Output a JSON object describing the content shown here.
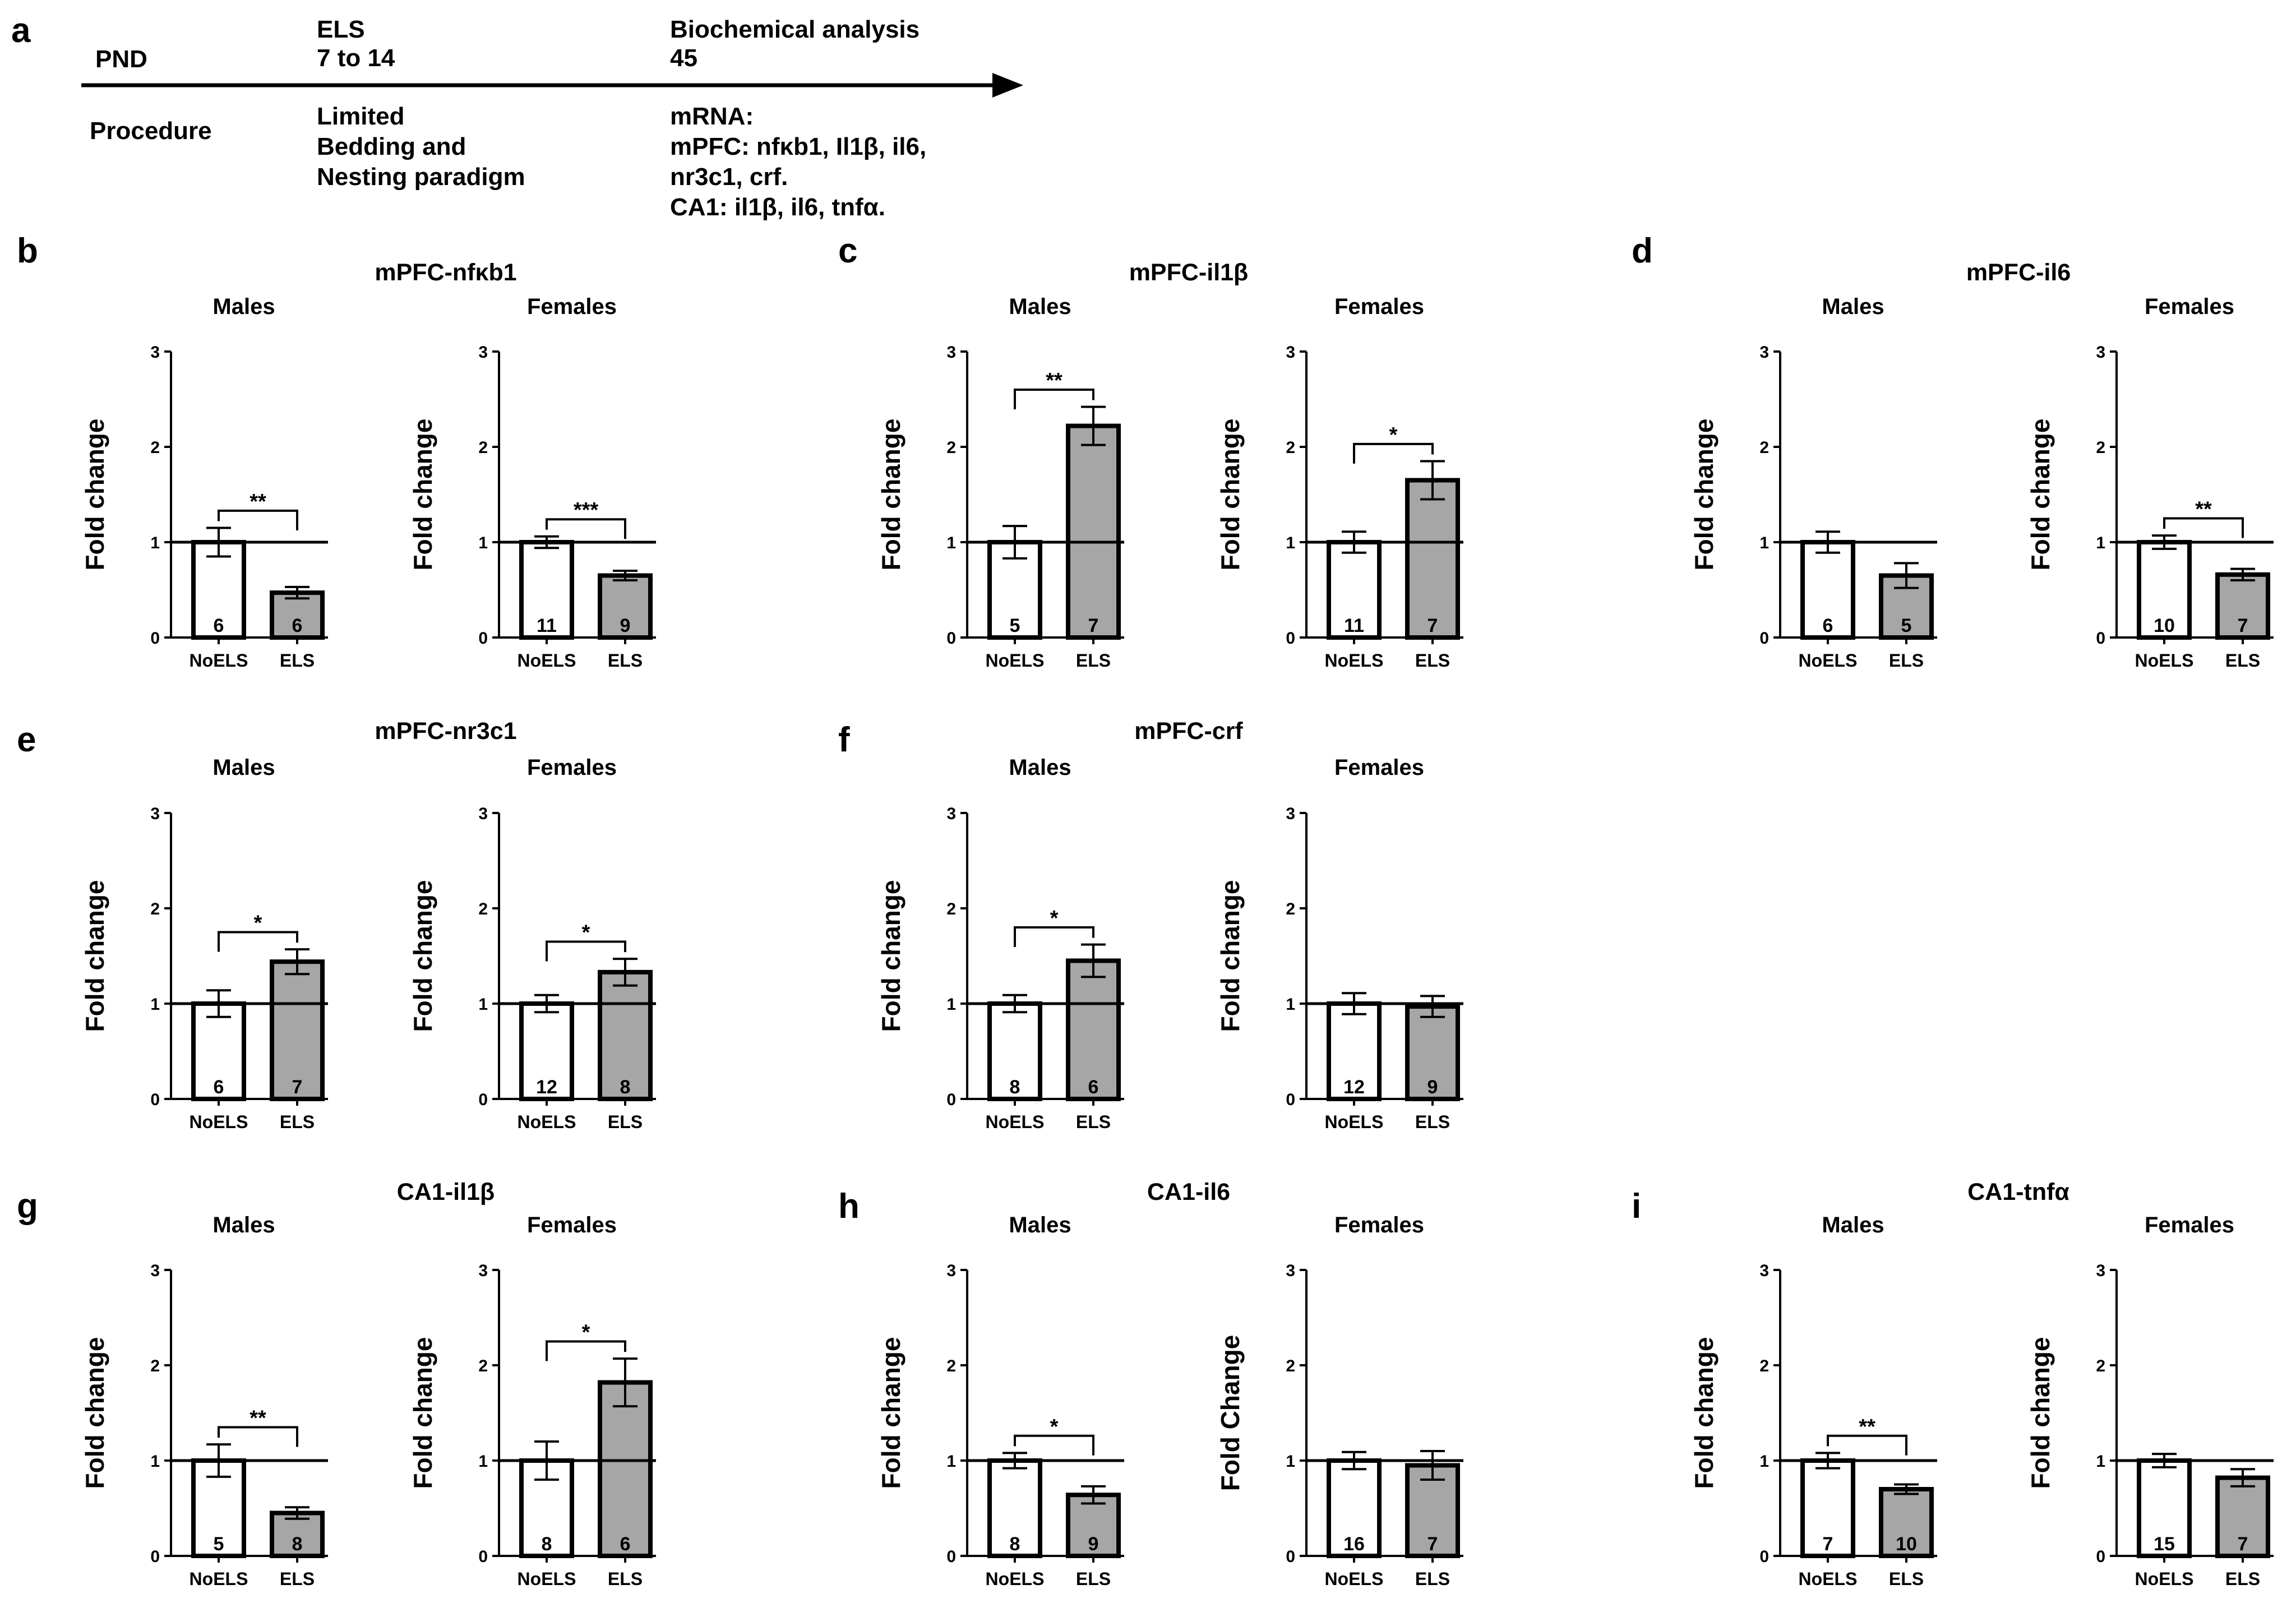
{
  "timeline": {
    "panel_label": "a",
    "row1_label": "PND",
    "row2_label": "Procedure",
    "stage1_lines": [
      "ELS",
      "7 to 14"
    ],
    "stage2_lines": [
      "Biochemical analysis",
      "45"
    ],
    "proc1_lines": [
      "Limited",
      "Bedding and",
      "Nesting paradigm"
    ],
    "proc2_lines": [
      "mRNA:",
      "mPFC: nfκb1, Il1β, il6,",
      "nr3c1, crf.",
      "CA1: il1β, il6, tnfα."
    ]
  },
  "colors": {
    "noels_fill": "#ffffff",
    "els_fill": "#a6a6a6",
    "stroke": "#000000"
  },
  "chart_data": [
    {
      "type": "bar",
      "panel": "b",
      "title": "mPFC-nfκb1",
      "sex": "Males",
      "ylabel": "Fold change",
      "categories": [
        "NoELS",
        "ELS"
      ],
      "values": [
        1.0,
        0.47
      ],
      "errors": [
        0.15,
        0.06
      ],
      "n": [
        "6",
        "6"
      ],
      "significance": "**",
      "reference_line": 1,
      "ylim": [
        0,
        3
      ],
      "yticks": [
        0,
        1,
        2,
        3
      ]
    },
    {
      "type": "bar",
      "panel": "b",
      "title": "",
      "sex": "Females",
      "ylabel": "Fold change",
      "categories": [
        "NoELS",
        "ELS"
      ],
      "values": [
        1.0,
        0.65
      ],
      "errors": [
        0.06,
        0.05
      ],
      "n": [
        "11",
        "9"
      ],
      "significance": "***",
      "reference_line": 1,
      "ylim": [
        0,
        3
      ],
      "yticks": [
        0,
        1,
        2,
        3
      ]
    },
    {
      "type": "bar",
      "panel": "c",
      "title": "mPFC-il1β",
      "sex": "Males",
      "ylabel": "Fold change",
      "categories": [
        "NoELS",
        "ELS"
      ],
      "values": [
        1.0,
        2.22
      ],
      "errors": [
        0.17,
        0.2
      ],
      "n": [
        "5",
        "7"
      ],
      "significance": "**",
      "reference_line": 1,
      "ylim": [
        0,
        3
      ],
      "yticks": [
        0,
        1,
        2,
        3
      ]
    },
    {
      "type": "bar",
      "panel": "c",
      "title": "",
      "sex": "Females",
      "ylabel": "Fold change",
      "categories": [
        "NoELS",
        "ELS"
      ],
      "values": [
        1.0,
        1.65
      ],
      "errors": [
        0.11,
        0.2
      ],
      "n": [
        "11",
        "7"
      ],
      "significance": "*",
      "reference_line": 1,
      "ylim": [
        0,
        3
      ],
      "yticks": [
        0,
        1,
        2,
        3
      ]
    },
    {
      "type": "bar",
      "panel": "d",
      "title": "mPFC-il6",
      "sex": "Males",
      "ylabel": "Fold change",
      "categories": [
        "NoELS",
        "ELS"
      ],
      "values": [
        1.0,
        0.65
      ],
      "errors": [
        0.11,
        0.13
      ],
      "n": [
        "6",
        "5"
      ],
      "significance": "",
      "reference_line": 1,
      "ylim": [
        0,
        3
      ],
      "yticks": [
        0,
        1,
        2,
        3
      ]
    },
    {
      "type": "bar",
      "panel": "d",
      "title": "",
      "sex": "Females",
      "ylabel": "Fold change",
      "categories": [
        "NoELS",
        "ELS"
      ],
      "values": [
        1.0,
        0.66
      ],
      "errors": [
        0.07,
        0.06
      ],
      "n": [
        "10",
        "7"
      ],
      "significance": "**",
      "reference_line": 1,
      "ylim": [
        0,
        3
      ],
      "yticks": [
        0,
        1,
        2,
        3
      ]
    },
    {
      "type": "bar",
      "panel": "e",
      "title": "mPFC-nr3c1",
      "sex": "Males",
      "ylabel": "Fold change",
      "categories": [
        "NoELS",
        "ELS"
      ],
      "values": [
        1.0,
        1.44
      ],
      "errors": [
        0.14,
        0.13
      ],
      "n": [
        "6",
        "7"
      ],
      "significance": "*",
      "reference_line": 1,
      "ylim": [
        0,
        3
      ],
      "yticks": [
        0,
        1,
        2,
        3
      ]
    },
    {
      "type": "bar",
      "panel": "e",
      "title": "",
      "sex": "Females",
      "ylabel": "Fold change",
      "categories": [
        "NoELS",
        "ELS"
      ],
      "values": [
        1.0,
        1.33
      ],
      "errors": [
        0.09,
        0.14
      ],
      "n": [
        "12",
        "8"
      ],
      "significance": "*",
      "reference_line": 1,
      "ylim": [
        0,
        3
      ],
      "yticks": [
        0,
        1,
        2,
        3
      ]
    },
    {
      "type": "bar",
      "panel": "f",
      "title": "mPFC-crf",
      "sex": "Males",
      "ylabel": "Fold change",
      "categories": [
        "NoELS",
        "ELS"
      ],
      "values": [
        1.0,
        1.45
      ],
      "errors": [
        0.09,
        0.17
      ],
      "n": [
        "8",
        "6"
      ],
      "significance": "*",
      "reference_line": 1,
      "ylim": [
        0,
        3
      ],
      "yticks": [
        0,
        1,
        2,
        3
      ]
    },
    {
      "type": "bar",
      "panel": "f",
      "title": "",
      "sex": "Females",
      "ylabel": "Fold change",
      "categories": [
        "NoELS",
        "ELS"
      ],
      "values": [
        1.0,
        0.97
      ],
      "errors": [
        0.11,
        0.11
      ],
      "n": [
        "12",
        "9"
      ],
      "significance": "",
      "reference_line": 1,
      "ylim": [
        0,
        3
      ],
      "yticks": [
        0,
        1,
        2,
        3
      ]
    },
    {
      "type": "bar",
      "panel": "g",
      "title": "CA1-il1β",
      "sex": "Males",
      "ylabel": "Fold change",
      "categories": [
        "NoELS",
        "ELS"
      ],
      "values": [
        1.0,
        0.45
      ],
      "errors": [
        0.17,
        0.06
      ],
      "n": [
        "5",
        "8"
      ],
      "significance": "**",
      "reference_line": 1,
      "ylim": [
        0,
        3
      ],
      "yticks": [
        0,
        1,
        2,
        3
      ]
    },
    {
      "type": "bar",
      "panel": "g",
      "title": "",
      "sex": "Females",
      "ylabel": "Fold change",
      "categories": [
        "NoELS",
        "ELS"
      ],
      "values": [
        1.0,
        1.82
      ],
      "errors": [
        0.2,
        0.25
      ],
      "n": [
        "8",
        "6"
      ],
      "significance": "*",
      "reference_line": 1,
      "ylim": [
        0,
        3
      ],
      "yticks": [
        0,
        1,
        2,
        3
      ]
    },
    {
      "type": "bar",
      "panel": "h",
      "title": "CA1-il6",
      "sex": "Males",
      "ylabel": "Fold change",
      "categories": [
        "NoELS",
        "ELS"
      ],
      "values": [
        1.0,
        0.64
      ],
      "errors": [
        0.08,
        0.09
      ],
      "n": [
        "8",
        "9"
      ],
      "significance": "*",
      "reference_line": 1,
      "ylim": [
        0,
        3
      ],
      "yticks": [
        0,
        1,
        2,
        3
      ]
    },
    {
      "type": "bar",
      "panel": "h",
      "title": "",
      "sex": "Females",
      "ylabel": "Fold  Change",
      "categories": [
        "NoELS",
        "ELS"
      ],
      "values": [
        1.0,
        0.95
      ],
      "errors": [
        0.09,
        0.15
      ],
      "n": [
        "16",
        "7"
      ],
      "significance": "",
      "reference_line": 1,
      "ylim": [
        0,
        3
      ],
      "yticks": [
        0,
        1,
        2,
        3
      ]
    },
    {
      "type": "bar",
      "panel": "i",
      "title": "CA1-tnfα",
      "sex": "Males",
      "ylabel": "Fold change",
      "categories": [
        "NoELS",
        "ELS"
      ],
      "values": [
        1.0,
        0.7
      ],
      "errors": [
        0.08,
        0.05
      ],
      "n": [
        "7",
        "10"
      ],
      "significance": "**",
      "reference_line": 1,
      "ylim": [
        0,
        3
      ],
      "yticks": [
        0,
        1,
        2,
        3
      ]
    },
    {
      "type": "bar",
      "panel": "i",
      "title": "",
      "sex": "Females",
      "ylabel": "Fold change",
      "categories": [
        "NoELS",
        "ELS"
      ],
      "values": [
        1.0,
        0.82
      ],
      "errors": [
        0.07,
        0.09
      ],
      "n": [
        "15",
        "7"
      ],
      "significance": "",
      "reference_line": 1,
      "ylim": [
        0,
        3
      ],
      "yticks": [
        0,
        1,
        2,
        3
      ]
    }
  ]
}
